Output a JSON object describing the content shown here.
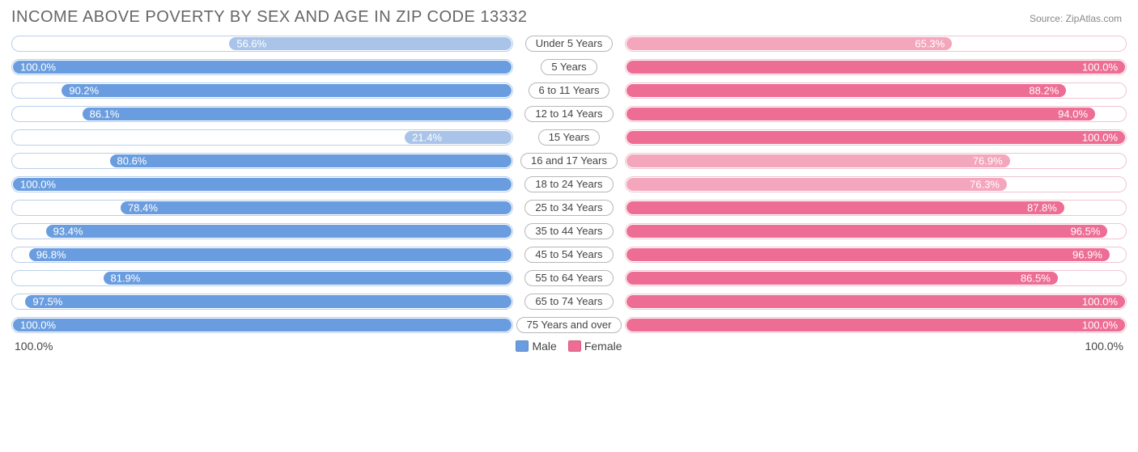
{
  "title": "INCOME ABOVE POVERTY BY SEX AND AGE IN ZIP CODE 13332",
  "source": "Source: ZipAtlas.com",
  "colors": {
    "male_fill": "#6a9ddf",
    "male_border": "#5a8acb",
    "male_light_fill": "#a9c4e8",
    "female_fill": "#ed6d94",
    "female_border": "#d95e85",
    "female_light_fill": "#f4a6bd",
    "track_border_male": "#b9cfe9",
    "track_border_female": "#f2c4d2",
    "label_inside": "#ffffff",
    "label_outside": "#555555",
    "title_color": "#666666",
    "center_label_border": "#b7b7b7"
  },
  "label_fontsize": 13,
  "title_fontsize": 20,
  "axis": {
    "left": "100.0%",
    "right": "100.0%"
  },
  "legend": {
    "male": "Male",
    "female": "Female"
  },
  "rows": [
    {
      "category": "Under 5 Years",
      "male": 56.6,
      "female": 65.3,
      "male_light": true,
      "female_light": true
    },
    {
      "category": "5 Years",
      "male": 100.0,
      "female": 100.0
    },
    {
      "category": "6 to 11 Years",
      "male": 90.2,
      "female": 88.2
    },
    {
      "category": "12 to 14 Years",
      "male": 86.1,
      "female": 94.0
    },
    {
      "category": "15 Years",
      "male": 21.4,
      "female": 100.0,
      "male_light": true
    },
    {
      "category": "16 and 17 Years",
      "male": 80.6,
      "female": 76.9,
      "female_light": true
    },
    {
      "category": "18 to 24 Years",
      "male": 100.0,
      "female": 76.3,
      "female_light": true
    },
    {
      "category": "25 to 34 Years",
      "male": 78.4,
      "female": 87.8
    },
    {
      "category": "35 to 44 Years",
      "male": 93.4,
      "female": 96.5
    },
    {
      "category": "45 to 54 Years",
      "male": 96.8,
      "female": 96.9
    },
    {
      "category": "55 to 64 Years",
      "male": 81.9,
      "female": 86.5
    },
    {
      "category": "65 to 74 Years",
      "male": 97.5,
      "female": 100.0
    },
    {
      "category": "75 Years and over",
      "male": 100.0,
      "female": 100.0
    }
  ]
}
